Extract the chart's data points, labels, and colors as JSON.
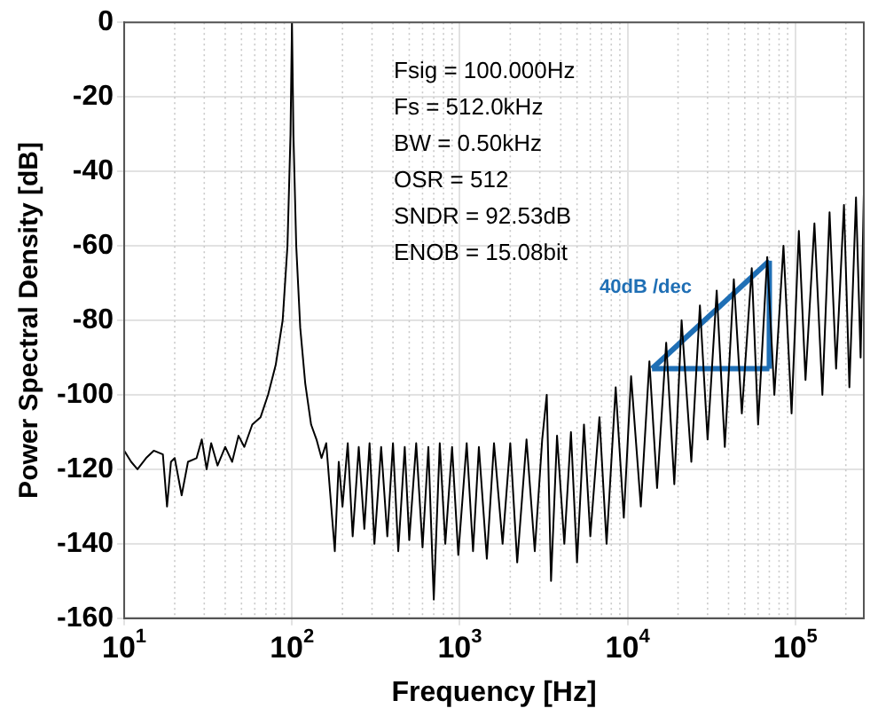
{
  "chart_data": {
    "type": "line",
    "xlabel": "Frequency [Hz]",
    "ylabel": "Power Spectral Density [dB]",
    "log": "x",
    "grid": true,
    "legend": false,
    "marker": "none",
    "line_style": "solid",
    "xlim": [
      10,
      256000
    ],
    "xticks": [
      {
        "value": 10,
        "label": "10$^{1}$"
      },
      {
        "value": 100,
        "label": "10$^{2}$"
      },
      {
        "value": 1000,
        "label": "10$^{3}$"
      },
      {
        "value": 10000,
        "label": "10$^{4}$"
      },
      {
        "value": 100000,
        "label": "10$^{5}$"
      }
    ],
    "ylim": [
      -160,
      0
    ],
    "yticks": [
      -160,
      -140,
      -120,
      -100,
      -80,
      -60,
      -40,
      -20,
      0
    ],
    "annotations": [
      "Fsig = 100.000Hz",
      "Fs = 512.0kHz",
      "BW = 0.50kHz",
      "OSR = 512",
      "SNDR = 92.53dB",
      "ENOB = 15.08bit",
      "40dB /dec"
    ],
    "series": [
      {
        "color": "#000000",
        "x": [
          10,
          11,
          12,
          13.5,
          15,
          17,
          18,
          19,
          20,
          22,
          24,
          27,
          29,
          31,
          33,
          36,
          40,
          44,
          48,
          52,
          58,
          65,
          72,
          80,
          88,
          94,
          98,
          100,
          102,
          106,
          112,
          120,
          130,
          140,
          150,
          160,
          170,
          180,
          190,
          200,
          215,
          230,
          250,
          270,
          290,
          310,
          340,
          370,
          400,
          430,
          470,
          500,
          550,
          600,
          650,
          700,
          760,
          820,
          900,
          980,
          1100,
          1200,
          1300,
          1450,
          1600,
          1800,
          2000,
          2200,
          2500,
          2800,
          3100,
          3300,
          3500,
          3800,
          4200,
          4600,
          5000,
          5500,
          6000,
          6800,
          7500,
          8500,
          9500,
          10500,
          12000,
          13500,
          15000,
          17000,
          19000,
          21000,
          24000,
          27000,
          30000,
          34000,
          38000,
          43000,
          48000,
          55000,
          60000,
          68000,
          75000,
          85000,
          95000,
          105000,
          115000,
          130000,
          145000,
          160000,
          175000,
          195000,
          210000,
          230000,
          245000,
          256000
        ],
        "values": [
          -115,
          -118,
          -120,
          -117,
          -115,
          -116,
          -130,
          -118,
          -117,
          -127,
          -118,
          -117,
          -112,
          -120,
          -113,
          -119,
          -114,
          -118,
          -111,
          -114,
          -108,
          -106,
          -100,
          -92,
          -80,
          -60,
          -30,
          0,
          -30,
          -60,
          -82,
          -97,
          -108,
          -112,
          -117,
          -113,
          -128,
          -142,
          -118,
          -130,
          -113,
          -138,
          -114,
          -136,
          -113,
          -140,
          -114,
          -138,
          -113,
          -142,
          -114,
          -139,
          -113,
          -141,
          -114,
          -155,
          -113,
          -140,
          -114,
          -143,
          -113,
          -142,
          -114,
          -144,
          -113,
          -140,
          -113,
          -145,
          -112,
          -142,
          -112,
          -100,
          -150,
          -111,
          -140,
          -110,
          -145,
          -108,
          -138,
          -106,
          -140,
          -98,
          -133,
          -95,
          -130,
          -91,
          -125,
          -86,
          -124,
          -80,
          -118,
          -76,
          -112,
          -72,
          -114,
          -69,
          -105,
          -66,
          -108,
          -63,
          -100,
          -60,
          -105,
          -56,
          -96,
          -54,
          -100,
          -51,
          -93,
          -49,
          -98,
          -47,
          -90,
          -46
        ]
      },
      {
        "type": "line",
        "color": "#1f6fb5",
        "x": [
          14000,
          70000
        ],
        "values": [
          -93,
          -64
        ]
      },
      {
        "type": "line",
        "color": "#1f6fb5",
        "x": [
          14000,
          70000
        ],
        "values": [
          -93,
          -93
        ]
      },
      {
        "type": "line",
        "color": "#1f6fb5",
        "x": [
          70000,
          70000
        ],
        "values": [
          -93,
          -64
        ]
      }
    ]
  }
}
